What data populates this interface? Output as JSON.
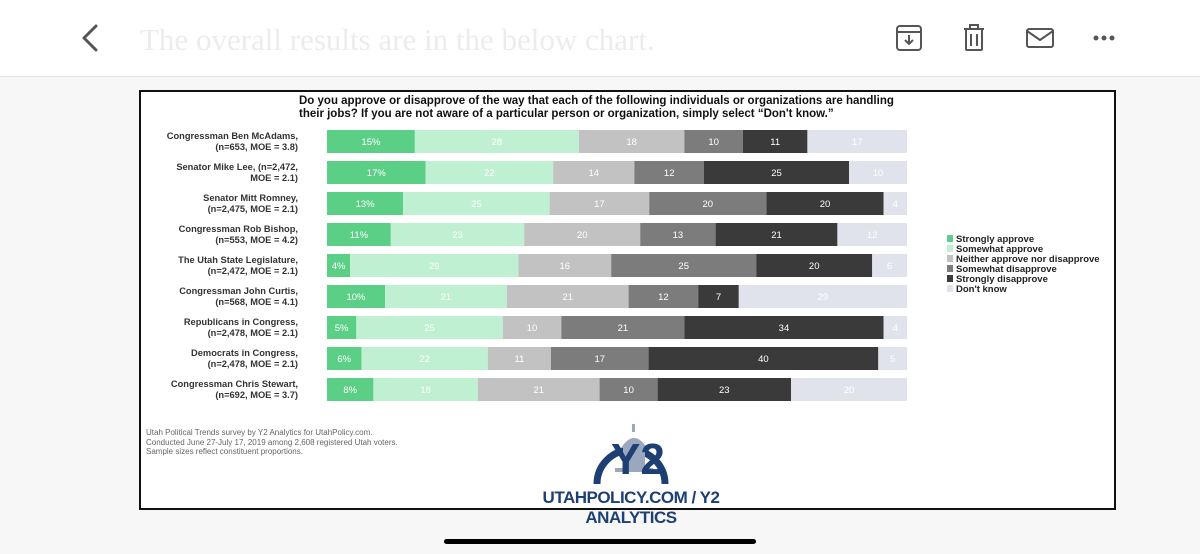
{
  "header": {
    "subject": "The overall results are in the below chart.",
    "icons": [
      "chevron-left-icon",
      "archive-download-icon",
      "trash-icon",
      "mail-icon",
      "more-horizontal-icon"
    ]
  },
  "chart_data": {
    "type": "bar",
    "orientation": "horizontal",
    "stacked": true,
    "title": "Do you approve or disapprove of the way that each of the following individuals or organizations are handling their jobs? If you are not aware of a particular person or organization, simply select “Don't know.”",
    "title_lines": [
      "Do you approve or disapprove of the way that each of the following individuals or organizations are handling",
      "their jobs? If you are not aware of a particular person or organization, simply select “Don't know.”"
    ],
    "categories": [
      [
        "Congressman Ben McAdams,",
        "(n=653, MOE = 3.8)"
      ],
      [
        "Senator Mike Lee, (n=2,472,",
        "MOE = 2.1)"
      ],
      [
        "Senator Mitt Romney,",
        "(n=2,475, MOE = 2.1)"
      ],
      [
        "Congressman Rob Bishop,",
        "(n=553, MOE = 4.2)"
      ],
      [
        "The Utah State Legislature,",
        "(n=2,472, MOE = 2.1)"
      ],
      [
        "Congressman John Curtis,",
        "(n=568, MOE = 4.1)"
      ],
      [
        "Republicans in Congress,",
        "(n=2,478, MOE = 2.1)"
      ],
      [
        "Democrats in Congress,",
        "(n=2,478, MOE = 2.1)"
      ],
      [
        "Congressman Chris Stewart,",
        "(n=692, MOE = 3.7)"
      ]
    ],
    "series": [
      {
        "name": "Strongly approve",
        "color": "#5ccf86",
        "label_color": "#ffffff",
        "values": [
          15,
          17,
          13,
          11,
          4,
          10,
          5,
          6,
          8
        ]
      },
      {
        "name": "Somewhat approve",
        "color": "#bff0d2",
        "label_color": "#ffffff",
        "values": [
          28,
          22,
          25,
          23,
          29,
          21,
          25,
          22,
          18
        ]
      },
      {
        "name": "Neither approve nor disapprove",
        "color": "#c2c2c2",
        "label_color": "#ffffff",
        "values": [
          18,
          14,
          17,
          20,
          16,
          21,
          10,
          11,
          21
        ]
      },
      {
        "name": "Somewhat disapprove",
        "color": "#7c7c7c",
        "label_color": "#ffffff",
        "values": [
          10,
          12,
          20,
          13,
          25,
          12,
          21,
          17,
          10
        ]
      },
      {
        "name": "Strongly disapprove",
        "color": "#3a3a3a",
        "label_color": "#ffffff",
        "values": [
          11,
          25,
          20,
          21,
          20,
          7,
          34,
          40,
          23
        ]
      },
      {
        "name": "Don't know",
        "color": "#e1e3ec",
        "label_color": "#ffffff",
        "values": [
          17,
          10,
          4,
          12,
          6,
          29,
          4,
          5,
          20
        ]
      }
    ],
    "value_labels": [
      [
        "15%",
        "28",
        "18",
        "10",
        "11",
        "17"
      ],
      [
        "17%",
        "22",
        "14",
        "12",
        "25",
        "10"
      ],
      [
        "13%",
        "25",
        "17",
        "20",
        "20",
        "4"
      ],
      [
        "11%",
        "23",
        "20",
        "13",
        "21",
        "12"
      ],
      [
        "4%",
        "29",
        "16",
        "25",
        "20",
        "6"
      ],
      [
        "10%",
        "21",
        "21",
        "12",
        "7",
        "29"
      ],
      [
        "5%",
        "25",
        "10",
        "21",
        "34",
        "4"
      ],
      [
        "6%",
        "22",
        "11",
        "17",
        "40",
        "5"
      ],
      [
        "8%",
        "18",
        "21",
        "10",
        "23",
        "20"
      ]
    ],
    "legend_position": "right",
    "grid": false,
    "source_lines": [
      "Utah Political Trends survey by Y2 Analytics for UtahPolicy.com.",
      "Conducted June 27-July 17, 2019 among 2,608 registered Utah voters.",
      "Sample sizes reflect constituent proportions."
    ],
    "logo_text": "UTAHPOLICY.COM / Y2 ANALYTICS",
    "logo_mark": "Y2"
  }
}
